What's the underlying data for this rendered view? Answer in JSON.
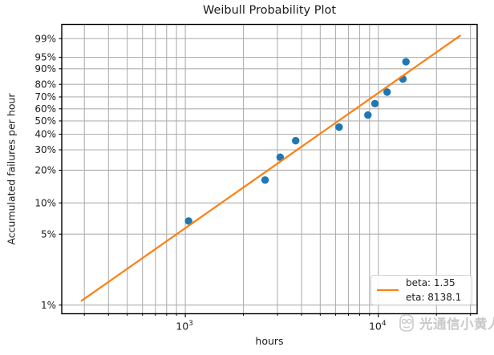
{
  "chart_data": {
    "type": "scatter",
    "title": "Weibull Probability Plot",
    "xlabel": "hours",
    "ylabel": "Accumulated failures per hour",
    "x_scale": "log",
    "y_scale": "weibull-probability",
    "grid": true,
    "grid_color": "#b0b0b0",
    "axis_color": "#000000",
    "xlim": [
      229,
      32500
    ],
    "ylim_pct": [
      0.82,
      99.83
    ],
    "x_major_ticks": [
      {
        "value": 1000,
        "mantissa": "10",
        "exponent": "3"
      },
      {
        "value": 10000,
        "mantissa": "10",
        "exponent": "4"
      }
    ],
    "x_minor_ticks": [
      300,
      400,
      500,
      600,
      700,
      800,
      900,
      2000,
      3000,
      4000,
      5000,
      6000,
      7000,
      8000,
      9000,
      20000,
      30000
    ],
    "y_ticks": [
      {
        "pct": 1,
        "label": "1%"
      },
      {
        "pct": 5,
        "label": "5%"
      },
      {
        "pct": 10,
        "label": "10%"
      },
      {
        "pct": 20,
        "label": "20%"
      },
      {
        "pct": 30,
        "label": "30%"
      },
      {
        "pct": 40,
        "label": "40%"
      },
      {
        "pct": 50,
        "label": "50%"
      },
      {
        "pct": 60,
        "label": "60%"
      },
      {
        "pct": 70,
        "label": "70%"
      },
      {
        "pct": 80,
        "label": "80%"
      },
      {
        "pct": 90,
        "label": "90%"
      },
      {
        "pct": 95,
        "label": "95%"
      },
      {
        "pct": 99,
        "label": "99%"
      }
    ],
    "series": [
      {
        "name": "failure-data-points",
        "type": "scatter",
        "color": "#1f77b4",
        "marker_radius": 4.7,
        "x": [
          1040,
          2590,
          3100,
          3730,
          6260,
          8830,
          9600,
          11100,
          13400,
          13900
        ],
        "y_pct": [
          6.7,
          16.3,
          26.0,
          35.6,
          45.2,
          54.8,
          64.4,
          74.0,
          83.7,
          93.3
        ]
      },
      {
        "name": "weibull-fit-line",
        "type": "weibull_line",
        "color": "#ff7f0e",
        "beta": 1.35,
        "eta": 8138.1,
        "x_start": 290,
        "x_end": 26500,
        "stroke_width": 2.2
      }
    ],
    "legend": {
      "position": "lower-right",
      "line_color": "#ff7f0e",
      "entries": [
        "beta: 1.35",
        "eta: 8138.1"
      ]
    }
  },
  "watermark": {
    "icon": "cartoon-face-icon",
    "text": "光通信小黄人",
    "color": "#c9c9c9"
  }
}
